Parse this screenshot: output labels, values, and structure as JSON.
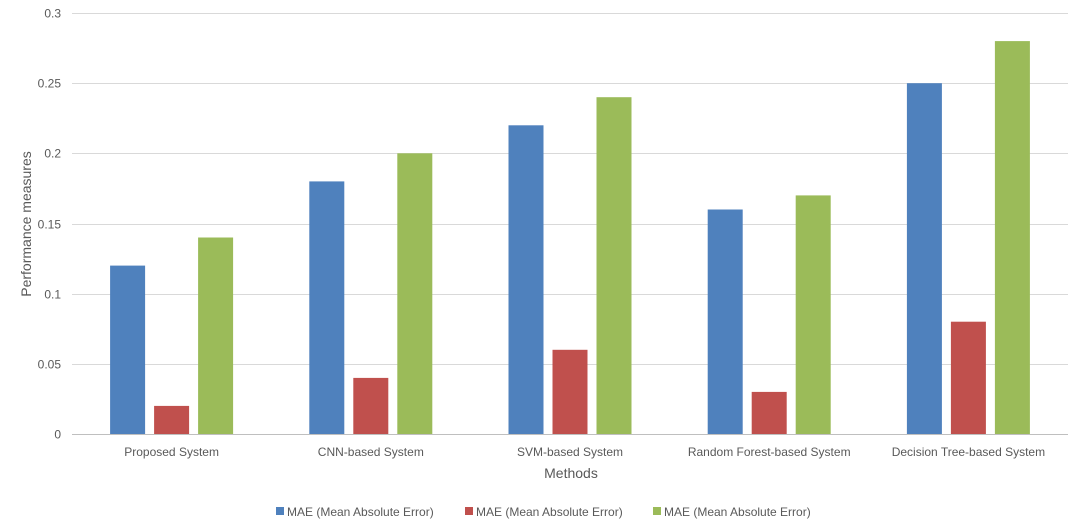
{
  "chart_data": {
    "type": "bar",
    "title": "",
    "xlabel": "Methods",
    "ylabel": "Performance measures",
    "ylim": [
      0,
      0.3
    ],
    "yticks": [
      "0",
      "0.05",
      "0.1",
      "0.15",
      "0.2",
      "0.25",
      "0.3"
    ],
    "ytick_values": [
      0,
      0.05,
      0.1,
      0.15,
      0.2,
      0.25,
      0.3
    ],
    "grid": true,
    "legend_position": "bottom",
    "categories": [
      "Proposed System",
      "CNN-based System",
      "SVM-based System",
      "Random Forest-based System",
      "Decision Tree-based System"
    ],
    "series": [
      {
        "name": "MAE (Mean Absolute Error)",
        "color": "#4F81BD",
        "values": [
          0.12,
          0.18,
          0.22,
          0.16,
          0.25
        ]
      },
      {
        "name": "MAE (Mean Absolute Error)",
        "color": "#C0504D",
        "values": [
          0.02,
          0.04,
          0.06,
          0.03,
          0.08
        ]
      },
      {
        "name": "MAE (Mean Absolute Error)",
        "color": "#9BBB59",
        "values": [
          0.14,
          0.2,
          0.24,
          0.17,
          0.28
        ]
      }
    ]
  }
}
